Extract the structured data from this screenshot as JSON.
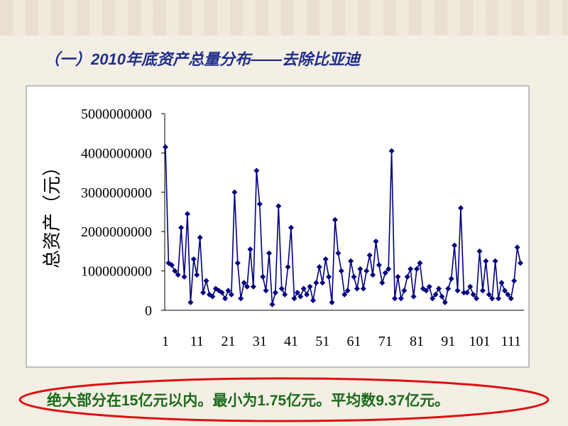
{
  "title": "（一）2010年底资产总量分布——去除比亚迪",
  "note": "绝大部分在15亿元以内。最小为1.75亿元。平均数9.37亿元。",
  "chart_data": {
    "type": "line",
    "y_label": "总资产（元）",
    "color": "#000080",
    "categories": [
      "1",
      null,
      null,
      null,
      null,
      null,
      null,
      null,
      null,
      null,
      "11",
      null,
      null,
      null,
      null,
      null,
      null,
      null,
      null,
      null,
      "21",
      null,
      null,
      null,
      null,
      null,
      null,
      null,
      null,
      null,
      "31",
      null,
      null,
      null,
      null,
      null,
      null,
      null,
      null,
      null,
      "41",
      null,
      null,
      null,
      null,
      null,
      null,
      null,
      null,
      null,
      "51",
      null,
      null,
      null,
      null,
      null,
      null,
      null,
      null,
      null,
      "61",
      null,
      null,
      null,
      null,
      null,
      null,
      null,
      null,
      null,
      "71",
      null,
      null,
      null,
      null,
      null,
      null,
      null,
      null,
      null,
      "81",
      null,
      null,
      null,
      null,
      null,
      null,
      null,
      null,
      null,
      "91",
      null,
      null,
      null,
      null,
      null,
      null,
      null,
      null,
      null,
      "101",
      null,
      null,
      null,
      null,
      null,
      null,
      null,
      null,
      null,
      "111",
      null,
      null,
      null
    ],
    "values": [
      4150000000,
      1200000000,
      1150000000,
      1000000000,
      900000000,
      2100000000,
      850000000,
      2450000000,
      200000000,
      1300000000,
      900000000,
      1850000000,
      450000000,
      750000000,
      400000000,
      350000000,
      550000000,
      500000000,
      450000000,
      300000000,
      500000000,
      400000000,
      3000000000,
      1200000000,
      300000000,
      700000000,
      600000000,
      1550000000,
      600000000,
      3550000000,
      2700000000,
      850000000,
      500000000,
      1450000000,
      150000000,
      450000000,
      2650000000,
      550000000,
      400000000,
      1100000000,
      2100000000,
      300000000,
      450000000,
      350000000,
      550000000,
      400000000,
      600000000,
      250000000,
      700000000,
      1100000000,
      700000000,
      1300000000,
      850000000,
      200000000,
      2300000000,
      1450000000,
      1000000000,
      400000000,
      500000000,
      1250000000,
      850000000,
      550000000,
      1050000000,
      550000000,
      1000000000,
      1400000000,
      900000000,
      1750000000,
      1150000000,
      700000000,
      950000000,
      1050000000,
      4050000000,
      300000000,
      850000000,
      300000000,
      500000000,
      850000000,
      1050000000,
      350000000,
      1050000000,
      1200000000,
      550000000,
      500000000,
      600000000,
      300000000,
      400000000,
      550000000,
      350000000,
      200000000,
      550000000,
      800000000,
      1650000000,
      500000000,
      2600000000,
      450000000,
      450000000,
      600000000,
      400000000,
      300000000,
      1500000000,
      500000000,
      1250000000,
      400000000,
      300000000,
      1250000000,
      300000000,
      700000000,
      500000000,
      400000000,
      300000000,
      750000000,
      1600000000,
      1200000000
    ],
    "ylim": [
      0,
      5000000000
    ],
    "yticks": [
      0,
      1000000000,
      2000000000,
      3000000000,
      4000000000,
      5000000000
    ]
  }
}
